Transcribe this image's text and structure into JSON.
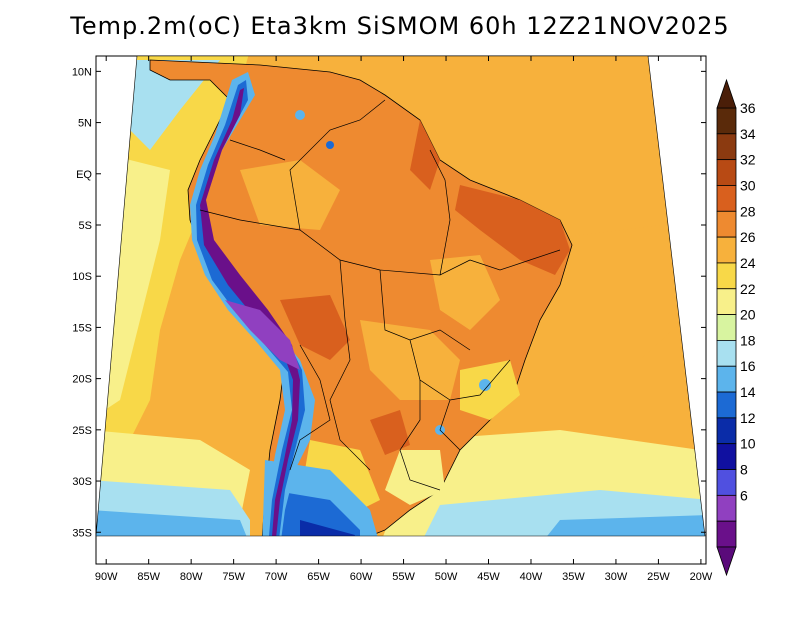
{
  "title": "Temp.2m(oC) Eta3km SiSMOM 60h 12Z21NOV2025",
  "map": {
    "variable": "2 m air temperature",
    "units": "oC",
    "model": "Eta3km SiSMOM",
    "forecast_hour": "60h",
    "valid_time": "12Z21NOV2025",
    "lat_ticks": [
      "10N",
      "5N",
      "EQ",
      "5S",
      "10S",
      "15S",
      "20S",
      "25S",
      "30S",
      "35S"
    ],
    "lon_ticks": [
      "90W",
      "85W",
      "80W",
      "75W",
      "70W",
      "65W",
      "60W",
      "55W",
      "50W",
      "45W",
      "40W",
      "35W",
      "30W",
      "25W",
      "20W"
    ],
    "lat_values": [
      10,
      5,
      0,
      -5,
      -10,
      -15,
      -20,
      -25,
      -30,
      -35
    ],
    "lon_values": [
      -90,
      -85,
      -80,
      -75,
      -70,
      -65,
      -60,
      -55,
      -50,
      -45,
      -40,
      -35,
      -30,
      -25,
      -20
    ]
  },
  "colorbar": {
    "labels": [
      "36",
      "34",
      "32",
      "30",
      "28",
      "26",
      "24",
      "22",
      "20",
      "18",
      "16",
      "14",
      "12",
      "10",
      "8",
      "6"
    ],
    "values": [
      36,
      34,
      32,
      30,
      28,
      26,
      24,
      22,
      20,
      18,
      16,
      14,
      12,
      10,
      8,
      6
    ],
    "colors_top_to_bottom": [
      "#5a2a0a",
      "#8b3a10",
      "#b84a14",
      "#d9601e",
      "#ee8a30",
      "#f7b13c",
      "#f8d848",
      "#f8f08a",
      "#d8f4a0",
      "#a8e0f0",
      "#5cb4ec",
      "#1c6ad4",
      "#0a2ca8",
      "#1010a0",
      "#5050e0",
      "#9040c0",
      "#6a108a"
    ],
    "arrow_top_color": "#4a1e08",
    "arrow_bottom_color": "#5a0a7a"
  },
  "colors": {
    "ocean_warm": "#f7b13c",
    "ocean_mild": "#f8d848",
    "ocean_cool": "#f8f08a",
    "land_hot": "#ee8a30",
    "land_very_hot": "#d9601e",
    "andes_cold": "#6a108a",
    "south_cold": "#1c6ad4",
    "border": "#000000"
  }
}
